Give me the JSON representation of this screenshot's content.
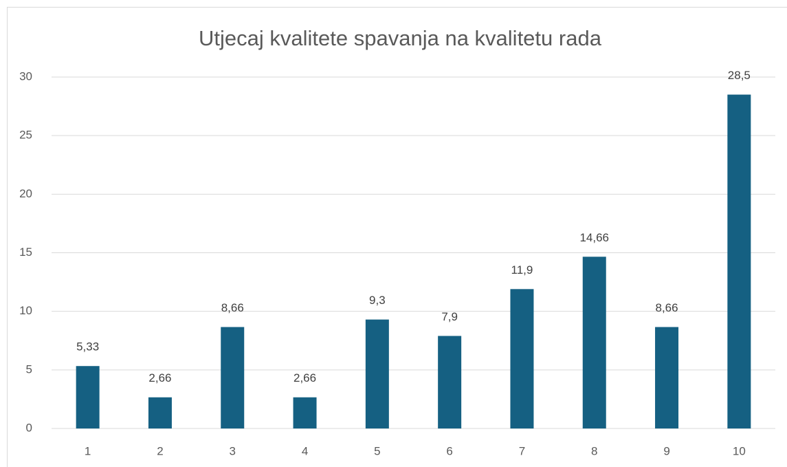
{
  "chart_data": {
    "type": "bar",
    "title": "Utjecaj kvalitete spavanja na kvalitetu rada",
    "categories": [
      "1",
      "2",
      "3",
      "4",
      "5",
      "6",
      "7",
      "8",
      "9",
      "10"
    ],
    "values": [
      5.33,
      2.66,
      8.66,
      2.66,
      9.3,
      7.9,
      11.9,
      14.66,
      8.66,
      28.5
    ],
    "value_labels": [
      "5,33",
      "2,66",
      "8,66",
      "2,66",
      "9,3",
      "7,9",
      "11,9",
      "14,66",
      "8,66",
      "28,5"
    ],
    "color": "#156082",
    "ylim": [
      0,
      30
    ],
    "yticks": [
      0,
      5,
      10,
      15,
      20,
      25,
      30
    ],
    "grid": true
  }
}
